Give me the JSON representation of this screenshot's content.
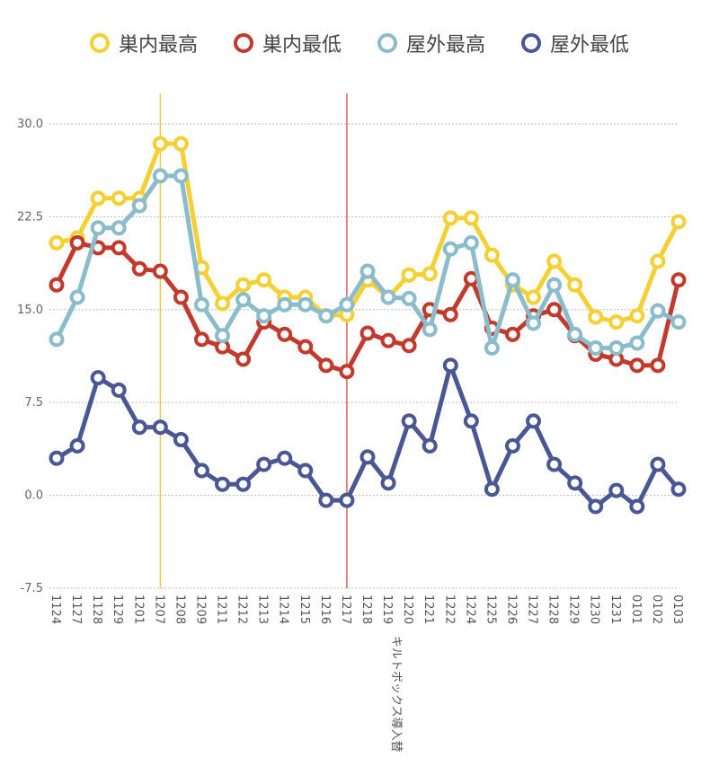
{
  "chart_data": {
    "type": "line",
    "categories": [
      "1124",
      "1127",
      "1128",
      "1129",
      "1201",
      "1207",
      "1208",
      "1209",
      "1211",
      "1212",
      "1213",
      "1214",
      "1215",
      "1216",
      "1217",
      "1218",
      "1219",
      "1220",
      "1221",
      "1222",
      "1224",
      "1225",
      "1226",
      "1227",
      "1228",
      "1229",
      "1230",
      "1231",
      "0101",
      "0102",
      "0103"
    ],
    "ylim": [
      -7.5,
      30.0
    ],
    "yticks": [
      "30.0",
      "22.5",
      "15.0",
      "7.5",
      "0.0",
      "-7.5"
    ],
    "grid": true,
    "legend_position": "top",
    "series": [
      {
        "name": "巣内最高",
        "color": "#f5d033",
        "values": [
          20.4,
          20.8,
          24.0,
          24.0,
          24.0,
          28.4,
          28.4,
          18.4,
          15.5,
          17.0,
          17.4,
          16.0,
          16.0,
          14.5,
          14.6,
          17.4,
          16.0,
          17.8,
          17.9,
          22.4,
          22.4,
          19.4,
          17.0,
          16.0,
          18.9,
          17.0,
          14.4,
          14.0,
          14.5,
          18.9,
          22.1
        ]
      },
      {
        "name": "巣内最低",
        "color": "#c23a2c",
        "values": [
          17.0,
          20.4,
          20.0,
          20.0,
          18.3,
          18.1,
          16.0,
          12.6,
          12.0,
          11.0,
          14.0,
          13.0,
          12.0,
          10.5,
          10.0,
          13.1,
          12.5,
          12.1,
          15.0,
          14.6,
          17.5,
          13.5,
          13.0,
          14.5,
          15.0,
          12.9,
          11.4,
          11.0,
          10.5,
          10.5,
          17.4
        ]
      },
      {
        "name": "屋外最高",
        "color": "#8bbccb",
        "values": [
          12.6,
          16.0,
          21.6,
          21.6,
          23.4,
          25.8,
          25.8,
          15.4,
          12.9,
          15.8,
          14.5,
          15.4,
          15.4,
          14.5,
          15.4,
          18.1,
          16.0,
          15.9,
          13.4,
          19.9,
          20.4,
          11.9,
          17.4,
          13.9,
          17.0,
          13.0,
          11.9,
          11.9,
          12.3,
          14.9,
          14.0
        ]
      },
      {
        "name": "屋外最低",
        "color": "#4a5795",
        "values": [
          3.0,
          4.0,
          9.5,
          8.5,
          5.5,
          5.5,
          4.5,
          2.0,
          0.9,
          0.9,
          2.5,
          3.0,
          2.0,
          -0.4,
          -0.4,
          3.1,
          1.0,
          6.0,
          4.0,
          10.5,
          6.0,
          0.5,
          4.0,
          6.0,
          2.5,
          1.0,
          -0.9,
          0.4,
          -0.9,
          2.5,
          0.5
        ]
      }
    ],
    "annotations": [
      {
        "category": "1207",
        "color": "#f5c52a",
        "label": ""
      },
      {
        "category": "1217",
        "color": "#e0443a",
        "label": "キルトボックス導入替"
      }
    ]
  }
}
